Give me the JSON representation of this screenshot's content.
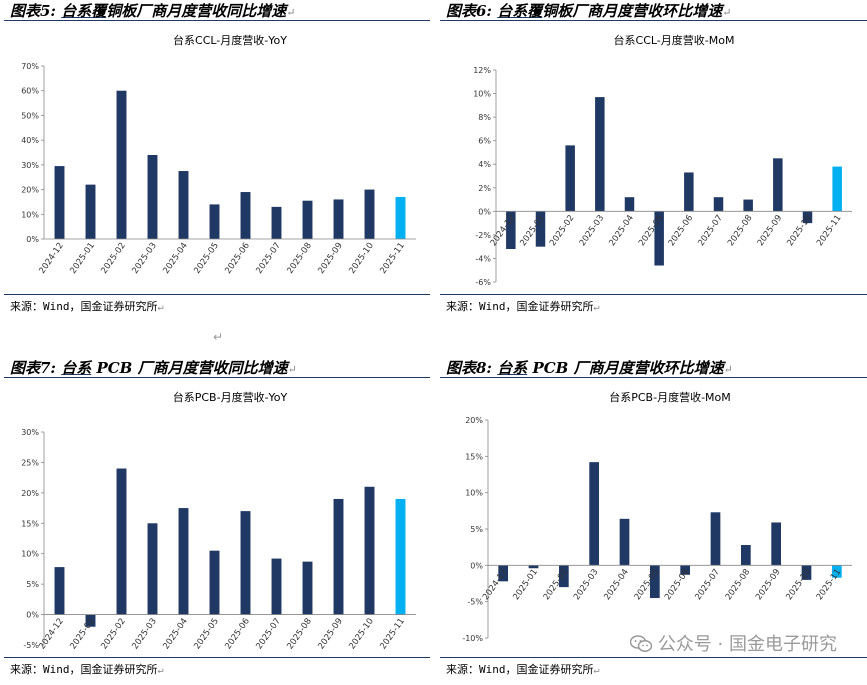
{
  "panels": [
    {
      "id": "p5",
      "heading": {
        "label": "图表5:",
        "ul": "台系覆",
        "rest": "铜板厂商月度营收同比增速"
      },
      "source": "来源：Wind，国金证券研究所"
    },
    {
      "id": "p6",
      "heading": {
        "label": "图表6:",
        "ul": "台系覆",
        "rest": "铜板厂商月度营收环比增速"
      },
      "source": "来源：Wind，国金证券研究所"
    },
    {
      "id": "p7",
      "heading": {
        "label": "图表7:",
        "ul": "台系",
        "rest": " PCB 厂商月度营收同比增速"
      },
      "source": "来源：Wind，国金证券研究所"
    },
    {
      "id": "p8",
      "heading": {
        "label": "图表8:",
        "ul": "台系",
        "rest": " PCB 厂商月度营收环比增速"
      },
      "source": "来源：Wind，国金证券研究所"
    }
  ],
  "return_mark": "↵",
  "watermark": "公众号 · 国金电子研究",
  "colors": {
    "bar": "#1f3864",
    "highlight": "#00b0f0",
    "rule": "#1f3864"
  },
  "chart_data": [
    {
      "type": "bar",
      "title": "台系CCL-月度营收-YoY",
      "categories": [
        "2024-12",
        "2025-01",
        "2025-02",
        "2025-03",
        "2025-04",
        "2025-05",
        "2025-06",
        "2025-07",
        "2025-08",
        "2025-09",
        "2025-10",
        "2025-11"
      ],
      "values": [
        29.5,
        22,
        60,
        34,
        27.5,
        14,
        19,
        13,
        15.5,
        16,
        20,
        17
      ],
      "ylim": [
        0,
        70
      ],
      "yticks": [
        0,
        10,
        20,
        30,
        40,
        50,
        60,
        70
      ],
      "highlight_last": true
    },
    {
      "type": "bar",
      "title": "台系CCL-月度营收-MoM",
      "categories": [
        "2024-12",
        "2025-01",
        "2025-02",
        "2025-03",
        "2025-04",
        "2025-05",
        "2025-06",
        "2025-07",
        "2025-08",
        "2025-09",
        "2025-10",
        "2025-11"
      ],
      "values": [
        -3.2,
        -3.0,
        5.6,
        9.7,
        1.2,
        -4.6,
        3.3,
        1.2,
        1.0,
        4.5,
        -1.0,
        3.8
      ],
      "ylim": [
        -6,
        12
      ],
      "yticks": [
        -6,
        -4,
        -2,
        0,
        2,
        4,
        6,
        8,
        10,
        12
      ],
      "highlight_last": true
    },
    {
      "type": "bar",
      "title": "台系PCB-月度营收-YoY",
      "categories": [
        "2024-12",
        "2025-01",
        "2025-02",
        "2025-03",
        "2025-04",
        "2025-05",
        "2025-06",
        "2025-07",
        "2025-08",
        "2025-09",
        "2025-10",
        "2025-11"
      ],
      "values": [
        7.8,
        -2.0,
        24,
        15,
        17.5,
        10.5,
        17,
        9.2,
        8.7,
        19,
        21,
        19
      ],
      "ylim": [
        -5,
        30
      ],
      "yticks": [
        -5,
        0,
        5,
        10,
        15,
        20,
        25,
        30
      ],
      "highlight_last": true
    },
    {
      "type": "bar",
      "title": "台系PCB-月度营收-MoM",
      "categories": [
        "2024-12",
        "2025-01",
        "2025-02",
        "2025-03",
        "2025-04",
        "2025-05",
        "2025-06",
        "2025-07",
        "2025-08",
        "2025-09",
        "2025-10",
        "2025-11"
      ],
      "values": [
        -2.2,
        -0.4,
        -3.0,
        14.2,
        6.4,
        -4.5,
        -1.3,
        7.3,
        2.8,
        5.9,
        -2.0,
        -1.7
      ],
      "ylim": [
        -10,
        20
      ],
      "yticks": [
        -10,
        -5,
        0,
        5,
        10,
        15,
        20
      ],
      "highlight_last": true
    }
  ]
}
